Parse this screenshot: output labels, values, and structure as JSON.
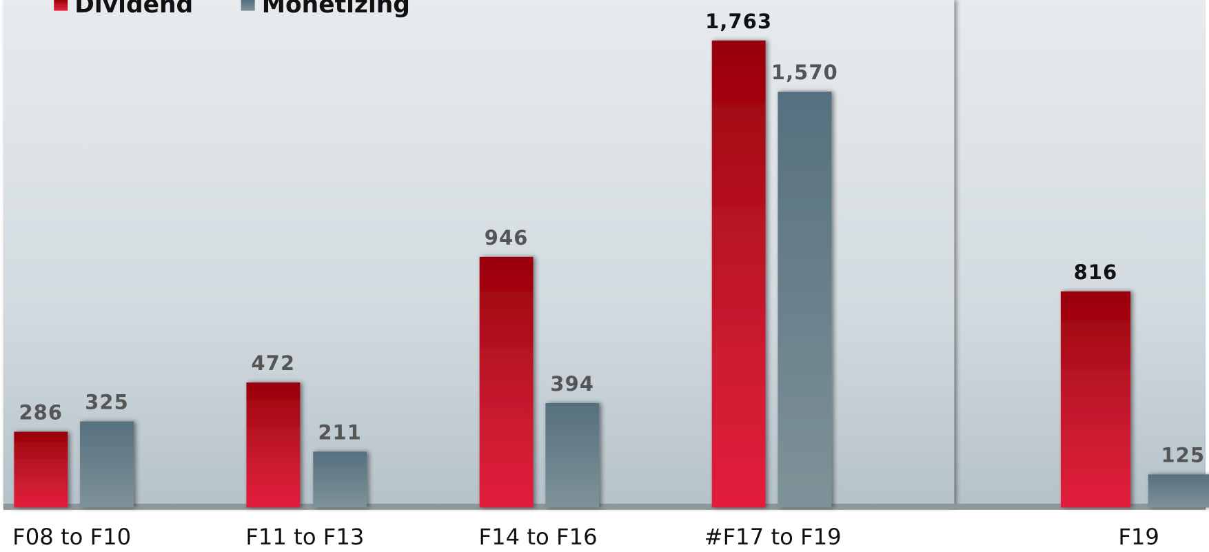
{
  "chart_data": {
    "type": "bar",
    "categories": [
      "F08 to F10",
      "F11 to F13",
      "F14 to F16",
      "#F17 to F19",
      "F19"
    ],
    "series": [
      {
        "name": "Dividend",
        "color": "#d01830",
        "values": [
          286,
          472,
          946,
          1763,
          816
        ],
        "value_labels": [
          "286",
          "472",
          "946",
          "1,763",
          "816"
        ]
      },
      {
        "name": "Monetizing",
        "color": "#66808e",
        "values": [
          325,
          211,
          394,
          1570,
          125
        ],
        "value_labels": [
          "325",
          "211",
          "394",
          "1,570",
          "125"
        ]
      }
    ],
    "ylim": [
      0,
      1800
    ]
  }
}
